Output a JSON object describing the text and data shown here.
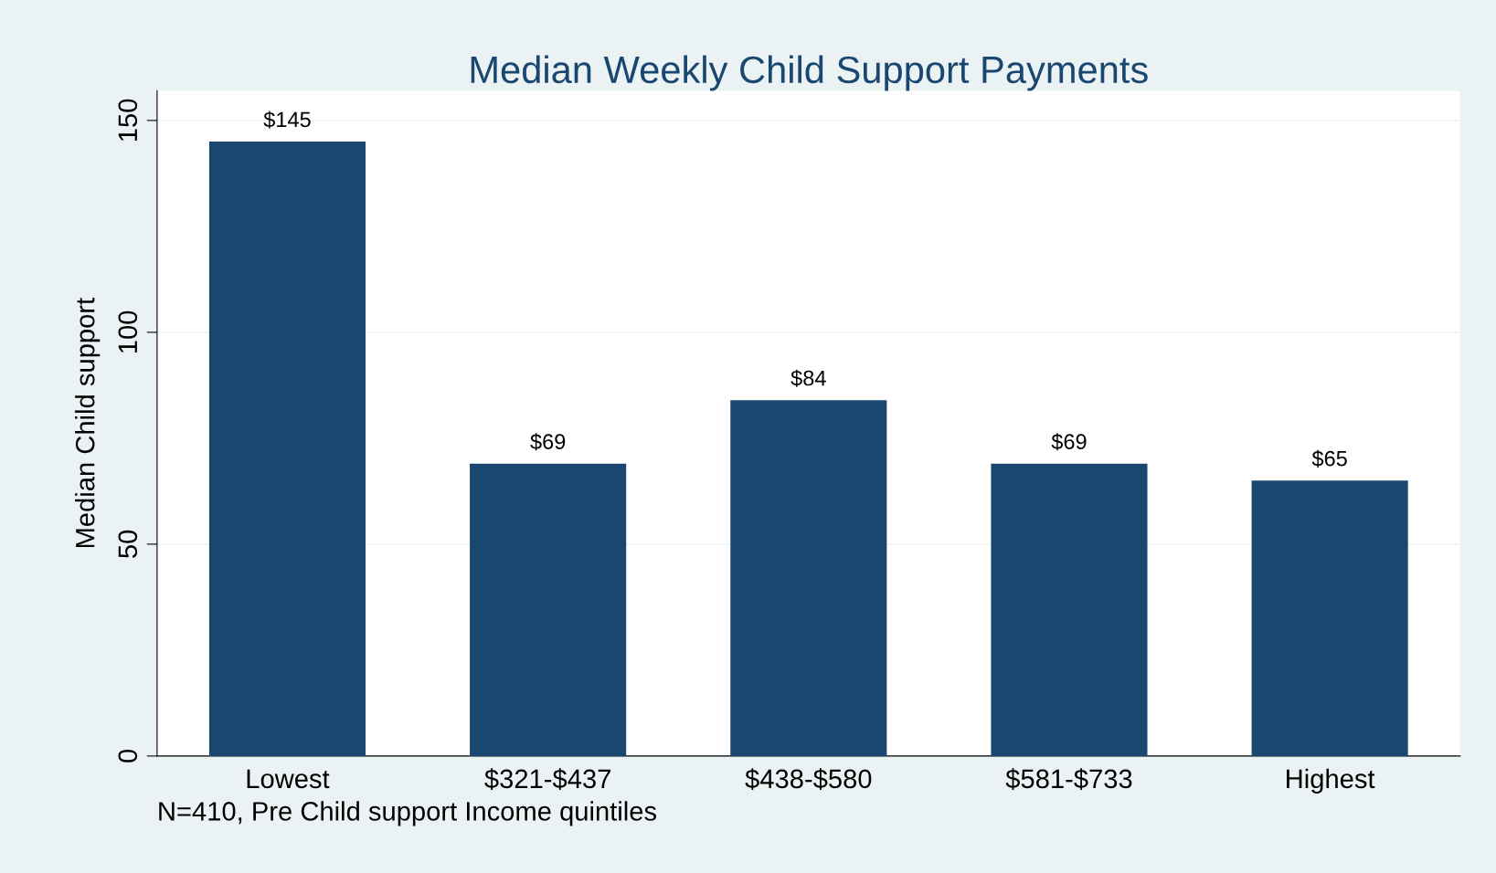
{
  "chart_data": {
    "type": "bar",
    "title": "Median Weekly Child Support Payments",
    "categories": [
      "Lowest",
      "$321-$437",
      "$438-$580",
      "$581-$733",
      "Highest"
    ],
    "values": [
      145,
      69,
      84,
      69,
      65
    ],
    "value_labels": [
      "$145",
      "$69",
      "$84",
      "$69",
      "$65"
    ],
    "color": "#1a476f",
    "xlabel": "N=410, Pre Child support Income quintiles",
    "ylabel": "Median Child support",
    "ylim": [
      0,
      157
    ],
    "yticks": [
      0,
      50,
      100,
      150
    ],
    "grid": "y"
  }
}
